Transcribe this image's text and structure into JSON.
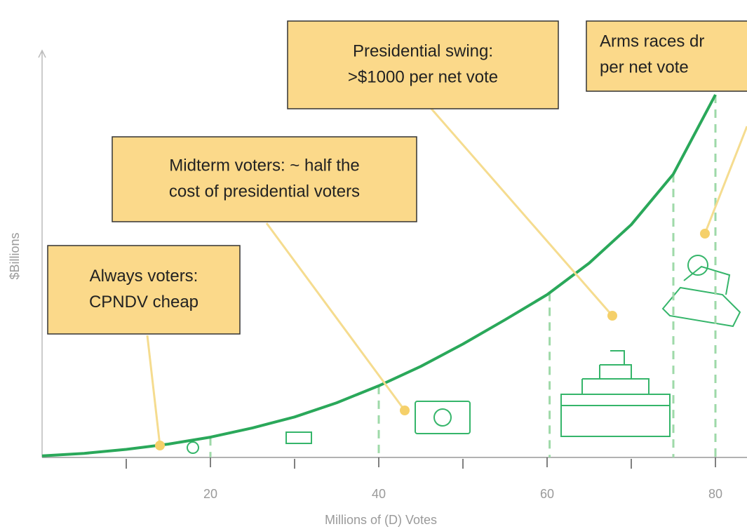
{
  "chart_data": {
    "type": "line",
    "x_label": "Millions of (D) Votes",
    "y_label": "$Billions",
    "x": [
      0,
      5,
      10,
      15,
      20,
      25,
      30,
      35,
      40,
      45,
      50,
      55,
      60,
      65,
      70,
      75,
      80
    ],
    "values": [
      0.4,
      1.0,
      2.0,
      3.3,
      5.0,
      7.3,
      10.0,
      13.5,
      17.7,
      22.5,
      28.0,
      34.0,
      40.2,
      48.0,
      57.5,
      70.0,
      89.6
    ],
    "color": "#2aa85a",
    "xlim": [
      0,
      83.75
    ],
    "ylim": [
      0,
      100
    ],
    "xticks": [
      20,
      40,
      60,
      80
    ],
    "xminorticks": [
      10,
      30,
      50,
      70
    ],
    "droplines": [
      20,
      40,
      60.3,
      75,
      80
    ],
    "annotations": [
      {
        "lines": [
          "Always voters:",
          "CPNDV cheap"
        ]
      },
      {
        "lines": [
          "Midterm voters: ~ half the",
          "cost of presidential voters"
        ]
      },
      {
        "lines": [
          "Presidential swing:",
          ">$1000 per net vote"
        ]
      },
      {
        "lines": [
          "Arms races dr",
          "per net vote"
        ]
      }
    ]
  }
}
